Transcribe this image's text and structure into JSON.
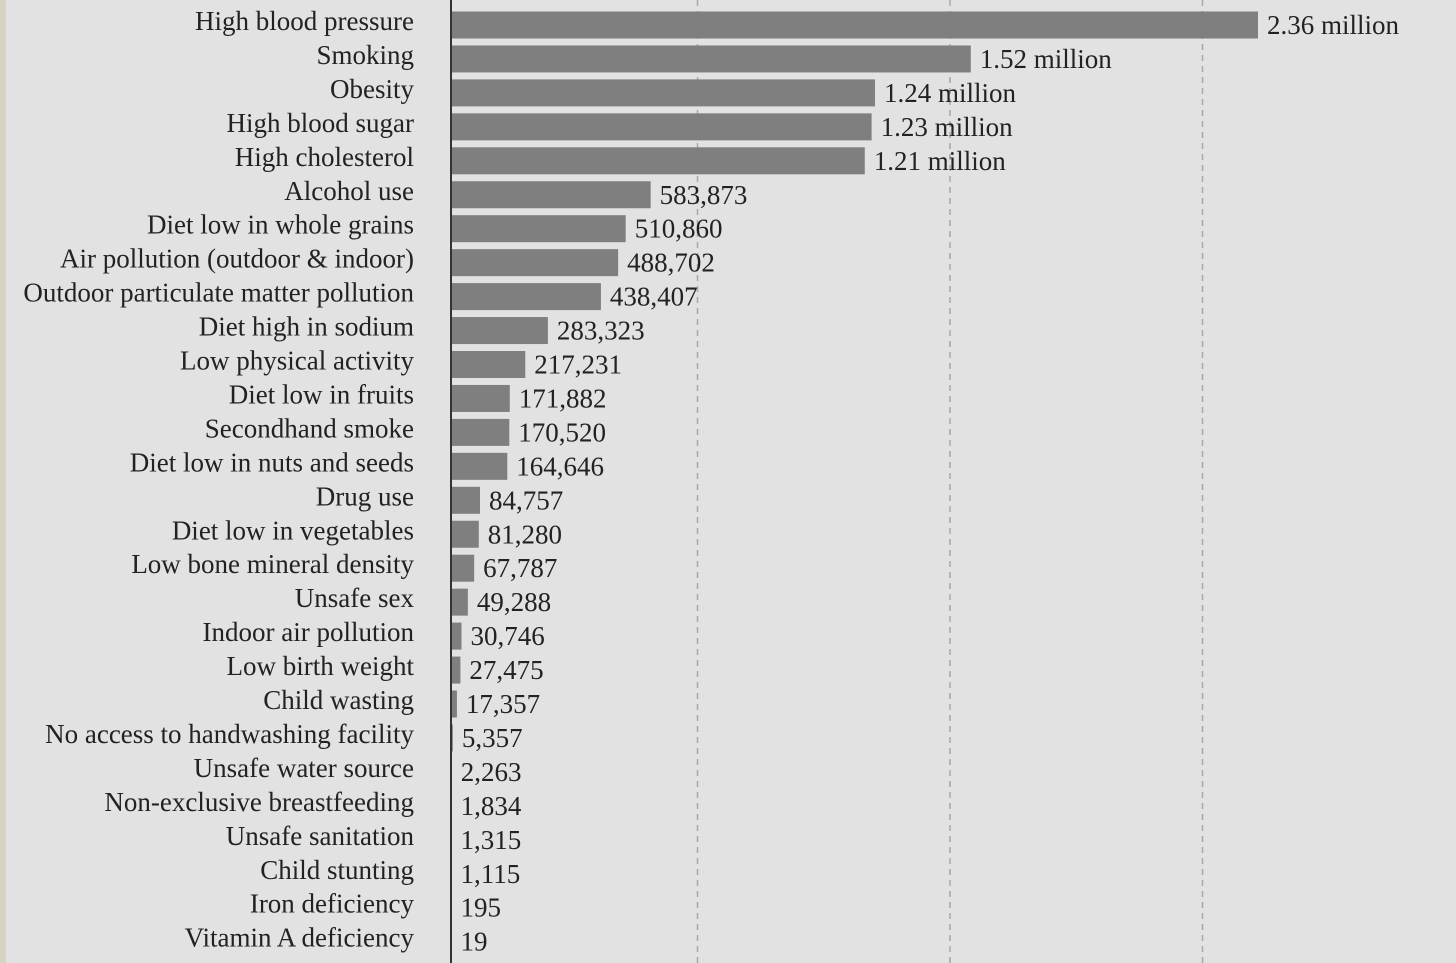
{
  "chart_data": {
    "type": "bar",
    "orientation": "horizontal",
    "categories": [
      "High blood pressure",
      "Smoking",
      "Obesity",
      "High blood sugar",
      "High cholesterol",
      "Alcohol use",
      "Diet low in whole grains",
      "Air pollution (outdoor & indoor)",
      "Outdoor particulate matter pollution",
      "Diet high in sodium",
      "Low physical activity",
      "Diet low in fruits",
      "Secondhand smoke",
      "Diet low in nuts and seeds",
      "Drug use",
      "Diet low in vegetables",
      "Low bone mineral density",
      "Unsafe sex",
      "Indoor air pollution",
      "Low birth weight",
      "Child wasting",
      "No access to handwashing facility",
      "Unsafe water source",
      "Non-exclusive breastfeeding",
      "Unsafe sanitation",
      "Child stunting",
      "Iron deficiency",
      "Vitamin A deficiency"
    ],
    "values": [
      2360000,
      1520000,
      1240000,
      1230000,
      1210000,
      583873,
      510860,
      488702,
      438407,
      283323,
      217231,
      171882,
      170520,
      164646,
      84757,
      81280,
      67787,
      49288,
      30746,
      27475,
      17357,
      5357,
      2263,
      1834,
      1315,
      1115,
      195,
      19
    ],
    "data_labels": [
      "2.36 million",
      "1.52 million",
      "1.24 million",
      "1.23 million",
      "1.21 million",
      "583,873",
      "510,860",
      "488,702",
      "438,407",
      "283,323",
      "217,231",
      "171,882",
      "170,520",
      "164,646",
      "84,757",
      "81,280",
      "67,787",
      "49,288",
      "30,746",
      "27,475",
      "17,357",
      "5,357",
      "2,263",
      "1,834",
      "1,315",
      "1,115",
      "195",
      "19"
    ],
    "xlim": [
      0,
      2500000
    ],
    "grid": "vertical dashed",
    "legend": "none",
    "colors": {
      "bar": "#7f7f7f",
      "background": "#e2e2e2",
      "axis": "#333333",
      "grid": "#a8a8a8",
      "text": "#222222"
    }
  }
}
